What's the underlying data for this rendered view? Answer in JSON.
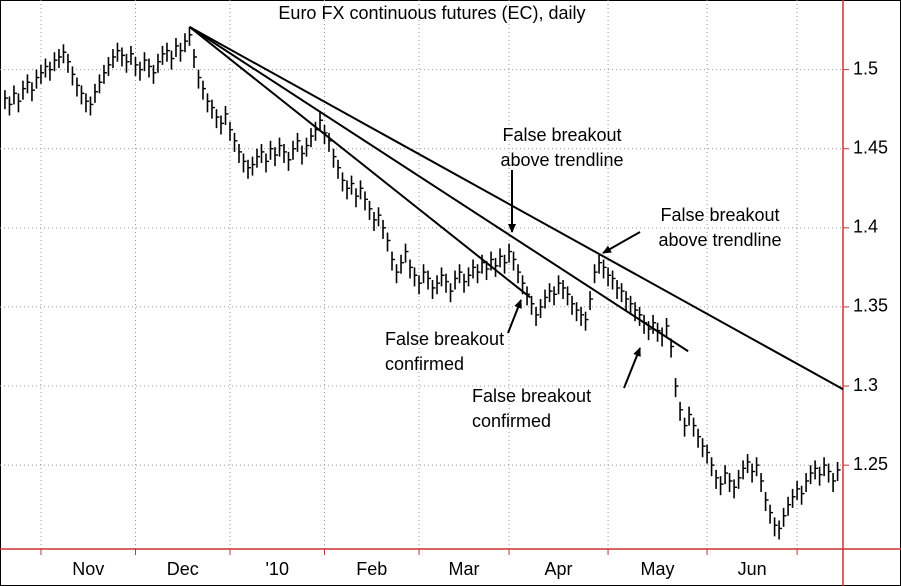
{
  "chart_data": {
    "type": "ohlc",
    "title": "Euro FX continuous futures (EC), daily",
    "xlim": [
      -1.1,
      186.2
    ],
    "ylim": [
      1.197,
      1.544
    ],
    "yticks": [
      1.25,
      1.3,
      1.35,
      1.4,
      1.45,
      1.5
    ],
    "xticks": [
      {
        "value": 18.5,
        "label": "Nov"
      },
      {
        "value": 39.5,
        "label": "Dec"
      },
      {
        "value": 60.5,
        "label": "'10"
      },
      {
        "value": 81.5,
        "label": "Feb"
      },
      {
        "value": 102,
        "label": "Mar"
      },
      {
        "value": 123,
        "label": "Apr"
      },
      {
        "value": 145,
        "label": "May"
      },
      {
        "value": 166,
        "label": "Jun"
      }
    ],
    "xgrid": [
      8,
      29,
      50,
      71,
      92,
      112,
      134,
      156,
      176
    ],
    "grid": true,
    "color": "#000000",
    "axis_color": "#cc3333",
    "close": [
      1.482,
      1.478,
      1.485,
      1.48,
      1.488,
      1.492,
      1.487,
      1.495,
      1.498,
      1.502,
      1.5,
      1.506,
      1.508,
      1.511,
      1.505,
      1.497,
      1.49,
      1.485,
      1.48,
      1.478,
      1.486,
      1.492,
      1.498,
      1.503,
      1.508,
      1.512,
      1.509,
      1.505,
      1.51,
      1.503,
      1.5,
      1.506,
      1.502,
      1.498,
      1.505,
      1.51,
      1.512,
      1.507,
      1.515,
      1.512,
      1.518,
      1.522,
      1.508,
      1.495,
      1.488,
      1.48,
      1.476,
      1.47,
      1.466,
      1.472,
      1.462,
      1.455,
      1.448,
      1.442,
      1.438,
      1.44,
      1.445,
      1.448,
      1.442,
      1.45,
      1.446,
      1.452,
      1.448,
      1.443,
      1.45,
      1.455,
      1.447,
      1.452,
      1.458,
      1.462,
      1.468,
      1.46,
      1.455,
      1.445,
      1.438,
      1.43,
      1.425,
      1.428,
      1.42,
      1.425,
      1.418,
      1.412,
      1.405,
      1.408,
      1.4,
      1.392,
      1.38,
      1.372,
      1.378,
      1.385,
      1.375,
      1.37,
      1.365,
      1.372,
      1.368,
      1.362,
      1.365,
      1.37,
      1.366,
      1.36,
      1.368,
      1.372,
      1.366,
      1.37,
      1.375,
      1.372,
      1.378,
      1.374,
      1.38,
      1.376,
      1.382,
      1.378,
      1.385,
      1.38,
      1.372,
      1.365,
      1.358,
      1.352,
      1.345,
      1.35,
      1.356,
      1.36,
      1.358,
      1.365,
      1.362,
      1.358,
      1.352,
      1.348,
      1.345,
      1.342,
      1.355,
      1.372,
      1.378,
      1.375,
      1.37,
      1.368,
      1.362,
      1.36,
      1.355,
      1.352,
      1.348,
      1.345,
      1.34,
      1.336,
      1.34,
      1.335,
      1.332,
      1.338,
      1.325,
      1.3,
      1.285,
      1.275,
      1.282,
      1.275,
      1.268,
      1.262,
      1.258,
      1.25,
      1.242,
      1.238,
      1.245,
      1.24,
      1.236,
      1.242,
      1.248,
      1.252,
      1.246,
      1.25,
      1.24,
      1.228,
      1.22,
      1.212,
      1.21,
      1.218,
      1.225,
      1.23,
      1.235,
      1.232,
      1.24,
      1.245,
      1.248,
      1.244,
      1.25,
      1.246,
      1.24,
      1.247
    ],
    "high": [
      1.487,
      1.483,
      1.49,
      1.485,
      1.493,
      1.497,
      1.492,
      1.5,
      1.503,
      1.507,
      1.505,
      1.511,
      1.513,
      1.516,
      1.51,
      1.502,
      1.495,
      1.49,
      1.485,
      1.483,
      1.491,
      1.497,
      1.503,
      1.508,
      1.513,
      1.517,
      1.514,
      1.51,
      1.515,
      1.508,
      1.505,
      1.511,
      1.507,
      1.503,
      1.51,
      1.515,
      1.517,
      1.512,
      1.52,
      1.517,
      1.523,
      1.527,
      1.513,
      1.5,
      1.493,
      1.485,
      1.481,
      1.475,
      1.471,
      1.477,
      1.467,
      1.46,
      1.453,
      1.447,
      1.443,
      1.445,
      1.45,
      1.453,
      1.447,
      1.455,
      1.451,
      1.457,
      1.453,
      1.448,
      1.455,
      1.46,
      1.452,
      1.457,
      1.463,
      1.467,
      1.473,
      1.465,
      1.46,
      1.45,
      1.443,
      1.435,
      1.43,
      1.433,
      1.425,
      1.43,
      1.423,
      1.417,
      1.41,
      1.413,
      1.405,
      1.397,
      1.385,
      1.377,
      1.383,
      1.39,
      1.38,
      1.375,
      1.37,
      1.377,
      1.373,
      1.367,
      1.37,
      1.375,
      1.371,
      1.365,
      1.373,
      1.377,
      1.371,
      1.375,
      1.38,
      1.377,
      1.383,
      1.379,
      1.385,
      1.381,
      1.387,
      1.383,
      1.39,
      1.385,
      1.377,
      1.37,
      1.363,
      1.357,
      1.35,
      1.355,
      1.361,
      1.365,
      1.363,
      1.37,
      1.367,
      1.363,
      1.357,
      1.353,
      1.35,
      1.347,
      1.36,
      1.377,
      1.383,
      1.38,
      1.375,
      1.373,
      1.367,
      1.365,
      1.36,
      1.357,
      1.353,
      1.35,
      1.345,
      1.341,
      1.345,
      1.34,
      1.337,
      1.343,
      1.33,
      1.305,
      1.29,
      1.28,
      1.287,
      1.28,
      1.273,
      1.267,
      1.263,
      1.255,
      1.247,
      1.243,
      1.25,
      1.245,
      1.241,
      1.247,
      1.253,
      1.257,
      1.251,
      1.255,
      1.245,
      1.233,
      1.225,
      1.217,
      1.215,
      1.223,
      1.23,
      1.235,
      1.24,
      1.237,
      1.245,
      1.25,
      1.253,
      1.249,
      1.255,
      1.251,
      1.245,
      1.252
    ],
    "low": [
      1.475,
      1.471,
      1.478,
      1.473,
      1.481,
      1.485,
      1.48,
      1.488,
      1.491,
      1.495,
      1.493,
      1.499,
      1.501,
      1.504,
      1.498,
      1.49,
      1.483,
      1.478,
      1.473,
      1.471,
      1.479,
      1.485,
      1.491,
      1.496,
      1.501,
      1.505,
      1.502,
      1.498,
      1.503,
      1.496,
      1.493,
      1.499,
      1.495,
      1.491,
      1.498,
      1.503,
      1.505,
      1.5,
      1.508,
      1.505,
      1.511,
      1.515,
      1.501,
      1.488,
      1.481,
      1.473,
      1.469,
      1.463,
      1.459,
      1.465,
      1.455,
      1.448,
      1.441,
      1.435,
      1.431,
      1.433,
      1.438,
      1.441,
      1.435,
      1.443,
      1.439,
      1.445,
      1.441,
      1.436,
      1.443,
      1.448,
      1.44,
      1.445,
      1.451,
      1.455,
      1.461,
      1.453,
      1.448,
      1.438,
      1.431,
      1.423,
      1.418,
      1.421,
      1.413,
      1.418,
      1.411,
      1.405,
      1.398,
      1.401,
      1.393,
      1.385,
      1.373,
      1.365,
      1.371,
      1.378,
      1.368,
      1.363,
      1.358,
      1.365,
      1.361,
      1.355,
      1.358,
      1.363,
      1.359,
      1.353,
      1.361,
      1.365,
      1.359,
      1.363,
      1.368,
      1.365,
      1.371,
      1.367,
      1.373,
      1.369,
      1.375,
      1.371,
      1.378,
      1.373,
      1.365,
      1.358,
      1.351,
      1.345,
      1.338,
      1.343,
      1.349,
      1.353,
      1.351,
      1.358,
      1.355,
      1.351,
      1.345,
      1.341,
      1.338,
      1.335,
      1.348,
      1.365,
      1.371,
      1.368,
      1.363,
      1.361,
      1.355,
      1.353,
      1.348,
      1.345,
      1.341,
      1.338,
      1.333,
      1.329,
      1.333,
      1.328,
      1.325,
      1.331,
      1.318,
      1.293,
      1.278,
      1.268,
      1.275,
      1.268,
      1.261,
      1.255,
      1.251,
      1.243,
      1.235,
      1.231,
      1.238,
      1.233,
      1.229,
      1.235,
      1.241,
      1.245,
      1.239,
      1.243,
      1.233,
      1.221,
      1.213,
      1.205,
      1.203,
      1.211,
      1.218,
      1.223,
      1.228,
      1.225,
      1.233,
      1.238,
      1.241,
      1.237,
      1.243,
      1.239,
      1.233,
      1.24
    ],
    "trendlines": [
      {
        "x": [
          41,
          186.2
        ],
        "y": [
          1.527,
          1.298
        ]
      },
      {
        "x": [
          41,
          151.8
        ],
        "y": [
          1.527,
          1.322
        ]
      },
      {
        "x": [
          41,
          116.7
        ],
        "y": [
          1.527,
          1.356
        ]
      }
    ],
    "annotations": [
      {
        "lines": [
          "False breakout",
          "above trendline"
        ]
      },
      {
        "lines": [
          "False breakout",
          "above trendline"
        ]
      },
      {
        "lines": [
          "False breakout",
          "confirmed"
        ]
      },
      {
        "lines": [
          "False breakout",
          "confirmed"
        ]
      }
    ]
  }
}
